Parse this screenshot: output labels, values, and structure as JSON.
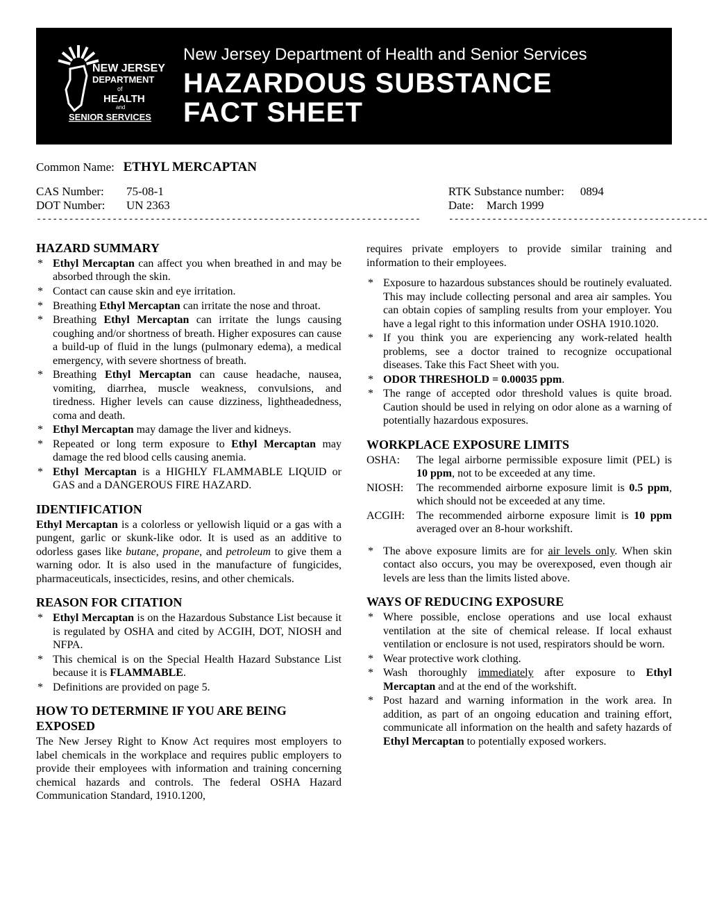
{
  "header": {
    "department_line": "New Jersey Department of Health and Senior Services",
    "main_title_line1": "HAZARDOUS SUBSTANCE",
    "main_title_line2": "FACT SHEET",
    "logo_lines": [
      "NEW JERSEY",
      "DEPARTMENT",
      "of",
      "HEALTH",
      "and",
      "SENIOR SERVICES"
    ]
  },
  "common_name": {
    "label": "Common Name:",
    "value": "ETHYL MERCAPTAN"
  },
  "meta_left": [
    {
      "label": "CAS Number:",
      "value": "75-08-1"
    },
    {
      "label": "DOT Number:",
      "value": "UN 2363"
    }
  ],
  "meta_right": [
    {
      "label": "RTK Substance number:",
      "value": "0894"
    },
    {
      "label": "Date:",
      "value": "March 1999"
    }
  ],
  "sections": {
    "hazard_summary": {
      "title": "HAZARD SUMMARY",
      "items": [
        "<span class=\"b\">Ethyl Mercaptan</span> can affect you when breathed in and may be absorbed through the skin.",
        "Contact can cause skin and eye irritation.",
        "Breathing <span class=\"b\">Ethyl Mercaptan</span> can irritate the nose and throat.",
        "Breathing <span class=\"b\">Ethyl Mercaptan</span> can irritate the lungs causing coughing and/or shortness of breath.  Higher exposures can cause a build-up of fluid in the lungs (pulmonary edema), a medical emergency, with severe shortness of breath.",
        "Breathing <span class=\"b\">Ethyl Mercaptan</span> can cause headache, nausea, vomiting, diarrhea, muscle weakness,  convulsions, and tiredness.    Higher levels can cause dizziness, lightheadedness, coma and death.",
        "<span class=\"b\">Ethyl Mercaptan</span> may damage the liver and kidneys.",
        "Repeated or long term exposure to <span class=\"b\">Ethyl Mercaptan</span> may damage the red blood cells causing anemia.",
        "<span class=\"b\">Ethyl Mercaptan</span> is a HIGHLY FLAMMABLE LIQUID or GAS and a DANGEROUS FIRE HAZARD."
      ]
    },
    "identification": {
      "title": "IDENTIFICATION",
      "body": "<span class=\"b\">Ethyl Mercaptan</span> is a colorless or yellowish liquid or a gas with a pungent, garlic or skunk-like odor.  It is used as an additive to odorless gases like <span class=\"i\">butane</span>, <span class=\"i\">propane</span>, and <span class=\"i\">petroleum</span> to give them a warning odor.   It is also used in the manufacture of fungicides, pharmaceuticals, insecticides, resins, and other chemicals."
    },
    "reason_for_citation": {
      "title": "REASON FOR CITATION",
      "items": [
        "<span class=\"b\">Ethyl Mercaptan</span> is on the Hazardous Substance List because it is regulated by OSHA and cited by ACGIH, DOT, NIOSH and NFPA.",
        "This chemical is on the Special Health Hazard Substance List because it is <span class=\"b\">FLAMMABLE</span>.",
        "Definitions are provided on page 5."
      ]
    },
    "how_to_determine": {
      "title": "HOW TO DETERMINE IF YOU ARE BEING EXPOSED",
      "body_left": "The New Jersey Right to Know Act requires most employers to label chemicals in the workplace and requires public employers to provide their employees with information and training concerning chemical hazards and controls.  The federal OSHA Hazard Communication Standard, 1910.1200,",
      "body_right": "requires private employers to provide similar training and information to their employees.",
      "items_right": [
        "Exposure to hazardous substances should be routinely evaluated. This may include collecting personal and area air samples.  You can obtain copies of sampling results from your employer. You have a legal right to this information under OSHA 1910.1020.",
        "If you think you are experiencing any work-related health problems, see a doctor trained to recognize occupational diseases.  Take this Fact Sheet with you.",
        "<span class=\"b\">ODOR THRESHOLD = 0.00035 ppm</span>.",
        "The range of accepted odor threshold values is quite broad.  Caution should be used in relying on odor alone as a warning of potentially hazardous exposures."
      ]
    },
    "workplace_limits": {
      "title": "WORKPLACE EXPOSURE LIMITS",
      "rows": [
        {
          "label": "OSHA:",
          "text": "The legal airborne permissible exposure limit (PEL) is <span class=\"b\">10 ppm</span>, not to be exceeded at any time."
        },
        {
          "label": "NIOSH:",
          "text": "The recommended airborne exposure limit is <span class=\"b\">0.5 ppm</span>, which should not be exceeded at any time."
        },
        {
          "label": "ACGIH:",
          "text": "The recommended airborne exposure limit is <span class=\"b\">10 ppm</span> averaged over an 8-hour workshift."
        }
      ],
      "note": "The above exposure limits are for <span class=\"u\">air levels only</span>. When skin contact also occurs, you may be overexposed, even though air levels are less than the limits listed above."
    },
    "ways_reducing": {
      "title": "WAYS OF REDUCING EXPOSURE",
      "items": [
        "Where possible, enclose operations and use local exhaust ventilation at the site of chemical release.  If local exhaust ventilation or enclosure is not used, respirators should be worn.",
        "Wear protective work clothing.",
        "Wash thoroughly <span class=\"u\">immediately</span> after exposure to <span class=\"b\">Ethyl Mercaptan</span> and at the end of the workshift.",
        "Post hazard and warning information in the work area.  In addition, as part of an ongoing education and training effort, communicate all information on the health and safety hazards of <span class=\"b\">Ethyl Mercaptan</span> to potentially exposed workers."
      ]
    }
  }
}
